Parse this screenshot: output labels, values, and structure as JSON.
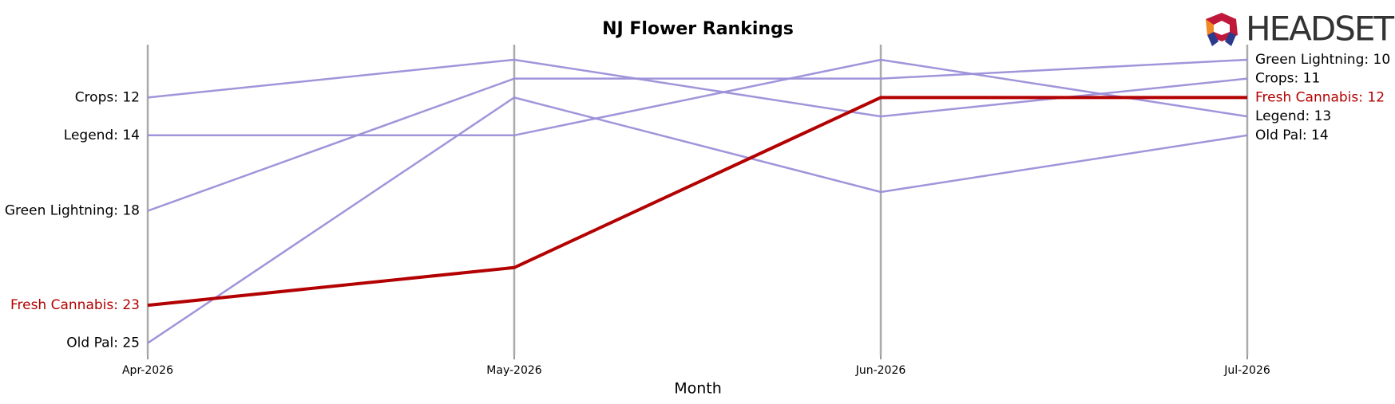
{
  "chart_data": {
    "type": "bump",
    "title": "NJ Flower Rankings",
    "x_label": "Month",
    "logo": "HEADSET",
    "categories": [
      "Apr-2026",
      "May-2026",
      "Jun-2026",
      "Jul-2026"
    ],
    "ylim": [
      25.65,
      9.2
    ],
    "highlight": "Fresh Cannabis",
    "series": [
      {
        "name": "Crops",
        "color": "#9b8fd8",
        "values": [
          12,
          10,
          13,
          11
        ],
        "value_labels": [
          "Crops: 12",
          null,
          null,
          "Crops: 11"
        ]
      },
      {
        "name": "Legend",
        "color": "#9b8fd8",
        "values": [
          14,
          14,
          10,
          13
        ],
        "value_labels": [
          "Legend: 14",
          null,
          null,
          "Legend: 13"
        ]
      },
      {
        "name": "Green Lightning",
        "color": "#9b8fd8",
        "values": [
          18,
          11,
          11,
          10
        ],
        "value_labels": [
          "Green Lightning: 18",
          null,
          null,
          "Green Lightning: 10"
        ]
      },
      {
        "name": "Old Pal",
        "color": "#9b8fd8",
        "values": [
          25,
          12,
          17,
          14
        ],
        "value_labels": [
          "Old Pal: 25",
          null,
          null,
          "Old Pal: 14"
        ]
      },
      {
        "name": "Fresh Cannabis",
        "color": "#b30000",
        "values": [
          23,
          21,
          12,
          12
        ],
        "value_labels": [
          "Fresh Cannabis: 23",
          null,
          null,
          "Fresh Cannabis: 12"
        ]
      }
    ]
  }
}
